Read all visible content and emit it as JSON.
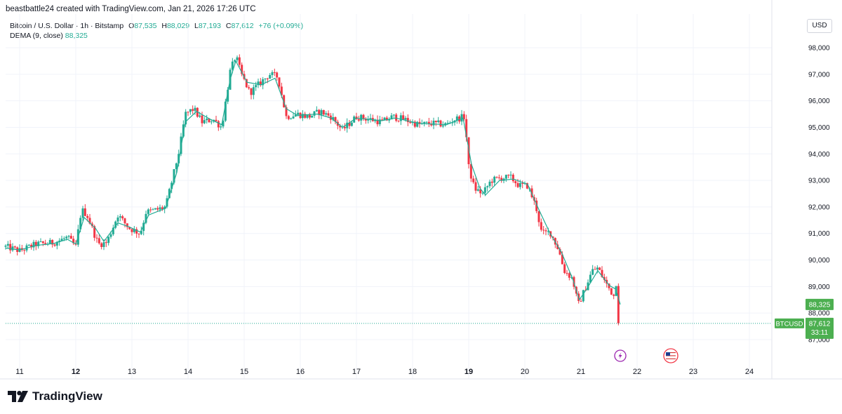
{
  "header": {
    "credit": "beastbattle24 created with TradingView.com, Jan 21, 2026 17:26 UTC"
  },
  "legend": {
    "symbol": "Bitcoin / U.S. Dollar · 1h · Bitstamp",
    "o_label": "O",
    "o_value": "87,535",
    "h_label": "H",
    "h_value": "88,029",
    "l_label": "L",
    "l_value": "87,193",
    "c_label": "C",
    "c_value": "87,612",
    "change": "+76 (+0.09%)",
    "indicator": "DEMA (9, close)",
    "indicator_value": "88,325"
  },
  "currency": "USD",
  "brand": "TradingView",
  "colors": {
    "up": "#22ab94",
    "down": "#f23645",
    "grid": "#f0f3fa",
    "dema_badge": "#4caf50",
    "price_badge": "#4caf50",
    "axis_text": "#131722"
  },
  "icons": {
    "lightning": "lightning-icon",
    "flag": "us-flag-icon"
  },
  "chart_data": {
    "type": "candlestick",
    "symbol": "BTCUSD",
    "timeframe": "1h",
    "title": "Bitcoin / U.S. Dollar · 1h · Bitstamp",
    "ylim": [
      86700,
      98500
    ],
    "y_ticks": [
      {
        "value": 87000,
        "label": "87,000"
      },
      {
        "value": 88000,
        "label": "88,000"
      },
      {
        "value": 89000,
        "label": "89,000"
      },
      {
        "value": 90000,
        "label": "90,000"
      },
      {
        "value": 91000,
        "label": "91,000"
      },
      {
        "value": 92000,
        "label": "92,000"
      },
      {
        "value": 93000,
        "label": "93,000"
      },
      {
        "value": 94000,
        "label": "94,000"
      },
      {
        "value": 95000,
        "label": "95,000"
      },
      {
        "value": 96000,
        "label": "96,000"
      },
      {
        "value": 97000,
        "label": "97,000"
      },
      {
        "value": 98000,
        "label": "98,000"
      }
    ],
    "xlim": [
      10.75,
      24.4
    ],
    "x_ticks": [
      {
        "value": 11,
        "label": "11",
        "bold": false
      },
      {
        "value": 12,
        "label": "12",
        "bold": true
      },
      {
        "value": 13,
        "label": "13",
        "bold": false
      },
      {
        "value": 14,
        "label": "14",
        "bold": false
      },
      {
        "value": 15,
        "label": "15",
        "bold": false
      },
      {
        "value": 16,
        "label": "16",
        "bold": false
      },
      {
        "value": 17,
        "label": "17",
        "bold": false
      },
      {
        "value": 18,
        "label": "18",
        "bold": false
      },
      {
        "value": 19,
        "label": "19",
        "bold": true
      },
      {
        "value": 20,
        "label": "20",
        "bold": false
      },
      {
        "value": 21,
        "label": "21",
        "bold": false
      },
      {
        "value": 22,
        "label": "22",
        "bold": false
      },
      {
        "value": 23,
        "label": "23",
        "bold": false
      },
      {
        "value": 24,
        "label": "24",
        "bold": false
      }
    ],
    "price_path": [
      [
        10.75,
        90500
      ],
      [
        11.0,
        90350
      ],
      [
        11.3,
        90600
      ],
      [
        11.6,
        90650
      ],
      [
        11.85,
        90850
      ],
      [
        12.0,
        90500
      ],
      [
        12.1,
        91900
      ],
      [
        12.2,
        91700
      ],
      [
        12.4,
        90600
      ],
      [
        12.55,
        90650
      ],
      [
        12.75,
        91700
      ],
      [
        12.95,
        91200
      ],
      [
        13.15,
        91000
      ],
      [
        13.25,
        91800
      ],
      [
        13.45,
        91900
      ],
      [
        13.6,
        92000
      ],
      [
        13.75,
        93300
      ],
      [
        13.85,
        94200
      ],
      [
        13.95,
        95500
      ],
      [
        14.1,
        95700
      ],
      [
        14.25,
        95200
      ],
      [
        14.45,
        95300
      ],
      [
        14.6,
        95000
      ],
      [
        14.75,
        97100
      ],
      [
        14.85,
        97700
      ],
      [
        14.95,
        97000
      ],
      [
        15.1,
        96300
      ],
      [
        15.25,
        96600
      ],
      [
        15.45,
        97000
      ],
      [
        15.6,
        96900
      ],
      [
        15.75,
        95400
      ],
      [
        15.95,
        95500
      ],
      [
        16.15,
        95400
      ],
      [
        16.35,
        95600
      ],
      [
        16.55,
        95400
      ],
      [
        16.75,
        94900
      ],
      [
        17.0,
        95400
      ],
      [
        17.25,
        95300
      ],
      [
        17.45,
        95200
      ],
      [
        17.65,
        95400
      ],
      [
        17.85,
        95300
      ],
      [
        18.1,
        95100
      ],
      [
        18.35,
        95150
      ],
      [
        18.6,
        95100
      ],
      [
        18.75,
        95300
      ],
      [
        18.93,
        95400
      ],
      [
        19.0,
        93500
      ],
      [
        19.1,
        92700
      ],
      [
        19.25,
        92500
      ],
      [
        19.4,
        93000
      ],
      [
        19.6,
        93100
      ],
      [
        19.75,
        93100
      ],
      [
        19.9,
        92800
      ],
      [
        20.05,
        92800
      ],
      [
        20.2,
        92000
      ],
      [
        20.3,
        91000
      ],
      [
        20.45,
        91050
      ],
      [
        20.6,
        90400
      ],
      [
        20.7,
        89600
      ],
      [
        20.85,
        89300
      ],
      [
        20.95,
        88300
      ],
      [
        21.05,
        88800
      ],
      [
        21.2,
        89600
      ],
      [
        21.3,
        89700
      ],
      [
        21.45,
        89100
      ],
      [
        21.6,
        88600
      ],
      [
        21.65,
        89700
      ],
      [
        21.7,
        87612
      ]
    ],
    "dema_line": [
      [
        10.75,
        90450
      ],
      [
        11.0,
        90380
      ],
      [
        11.3,
        90550
      ],
      [
        11.6,
        90620
      ],
      [
        11.85,
        90780
      ],
      [
        12.0,
        90600
      ],
      [
        12.15,
        91600
      ],
      [
        12.35,
        91200
      ],
      [
        12.5,
        90700
      ],
      [
        12.75,
        91400
      ],
      [
        12.95,
        91250
      ],
      [
        13.15,
        91050
      ],
      [
        13.3,
        91700
      ],
      [
        13.6,
        91950
      ],
      [
        13.8,
        93300
      ],
      [
        13.95,
        95200
      ],
      [
        14.15,
        95600
      ],
      [
        14.4,
        95300
      ],
      [
        14.6,
        95100
      ],
      [
        14.75,
        96800
      ],
      [
        14.85,
        97500
      ],
      [
        15.05,
        96700
      ],
      [
        15.3,
        96600
      ],
      [
        15.55,
        96850
      ],
      [
        15.75,
        95700
      ],
      [
        15.95,
        95450
      ],
      [
        16.3,
        95500
      ],
      [
        16.55,
        95350
      ],
      [
        16.75,
        95000
      ],
      [
        17.0,
        95350
      ],
      [
        17.45,
        95250
      ],
      [
        17.7,
        95350
      ],
      [
        18.1,
        95150
      ],
      [
        18.6,
        95100
      ],
      [
        18.9,
        95350
      ],
      [
        19.05,
        93600
      ],
      [
        19.2,
        92700
      ],
      [
        19.3,
        92450
      ],
      [
        19.55,
        93000
      ],
      [
        19.8,
        93050
      ],
      [
        20.05,
        92850
      ],
      [
        20.25,
        91900
      ],
      [
        20.45,
        91000
      ],
      [
        20.65,
        90300
      ],
      [
        20.85,
        89300
      ],
      [
        20.97,
        88500
      ],
      [
        21.1,
        88900
      ],
      [
        21.3,
        89600
      ],
      [
        21.5,
        89050
      ],
      [
        21.62,
        88900
      ],
      [
        21.7,
        88325
      ]
    ],
    "last_price": 87612,
    "last_price_label": "87,612",
    "last_symbol_label": "BTCUSD",
    "countdown": "33:11",
    "dema_value": 88325,
    "dema_label": "88,325",
    "event_markers": [
      {
        "x": 21.7,
        "kind": "lightning"
      },
      {
        "x": 22.6,
        "kind": "us-flag"
      }
    ]
  }
}
